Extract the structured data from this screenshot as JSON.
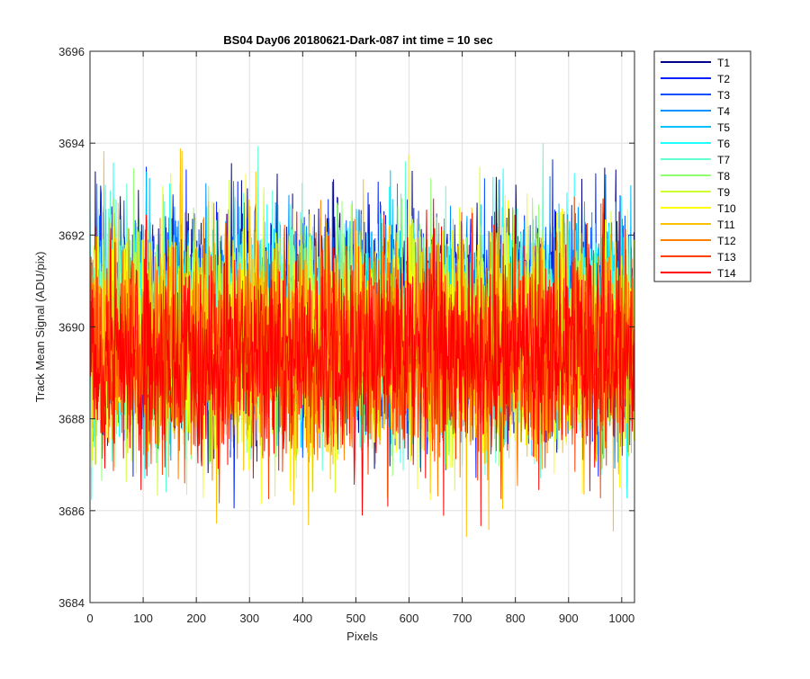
{
  "chart_data": {
    "type": "line",
    "title": "BS04 Day06 20180621-Dark-087 int time = 10 sec",
    "xlabel": "Pixels",
    "ylabel": "Track Mean Signal (ADU/pix)",
    "xlim": [
      0,
      1024
    ],
    "ylim": [
      3684,
      3696
    ],
    "x_ticks": [
      0,
      100,
      200,
      300,
      400,
      500,
      600,
      700,
      800,
      900,
      1000
    ],
    "y_ticks": [
      3684,
      3686,
      3688,
      3690,
      3692,
      3694,
      3696
    ],
    "grid": true,
    "legend_position": "outside-top-right",
    "x": "integers 0 to 1023 (one value per pixel)",
    "series": [
      {
        "name": "T1",
        "color": "#00008f",
        "mean": 3690.3,
        "min": 3685.8,
        "max": 3693.6
      },
      {
        "name": "T2",
        "color": "#0020ff",
        "mean": 3690.2,
        "min": 3686.0,
        "max": 3693.7
      },
      {
        "name": "T3",
        "color": "#0050ff",
        "mean": 3690.1,
        "min": 3686.1,
        "max": 3693.4
      },
      {
        "name": "T4",
        "color": "#0090ff",
        "mean": 3690.0,
        "min": 3685.7,
        "max": 3693.3
      },
      {
        "name": "T5",
        "color": "#00c0ff",
        "mean": 3690.0,
        "min": 3686.0,
        "max": 3693.5
      },
      {
        "name": "T6",
        "color": "#20ffff",
        "mean": 3689.9,
        "min": 3686.2,
        "max": 3693.8
      },
      {
        "name": "T7",
        "color": "#60ffd0",
        "mean": 3689.9,
        "min": 3686.3,
        "max": 3694.5
      },
      {
        "name": "T8",
        "color": "#90ff70",
        "mean": 3689.8,
        "min": 3686.5,
        "max": 3693.8
      },
      {
        "name": "T9",
        "color": "#d0ff30",
        "mean": 3689.8,
        "min": 3686.2,
        "max": 3693.5
      },
      {
        "name": "T10",
        "color": "#ffff00",
        "mean": 3689.7,
        "min": 3686.1,
        "max": 3694.1
      },
      {
        "name": "T11",
        "color": "#ffc000",
        "mean": 3689.6,
        "min": 3685.3,
        "max": 3693.9
      },
      {
        "name": "T12",
        "color": "#ff8000",
        "mean": 3689.5,
        "min": 3686.3,
        "max": 3693.2
      },
      {
        "name": "T13",
        "color": "#ff4000",
        "mean": 3689.4,
        "min": 3685.9,
        "max": 3693.0
      },
      {
        "name": "T14",
        "color": "#ff0000",
        "mean": 3689.3,
        "min": 3684.9,
        "max": 3692.8
      }
    ]
  }
}
